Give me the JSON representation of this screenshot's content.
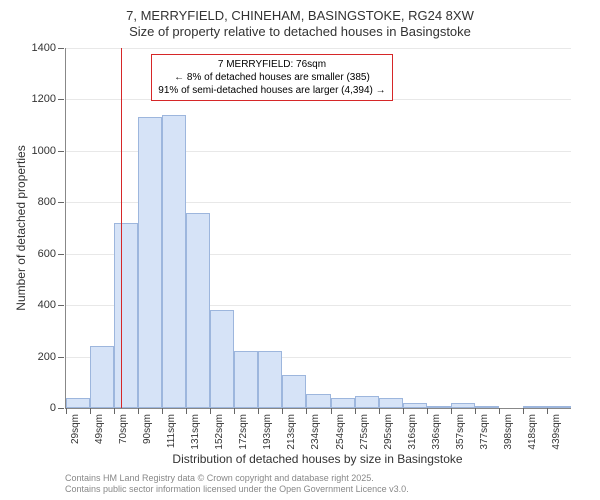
{
  "chart": {
    "type": "histogram",
    "title_main": "7, MERRYFIELD, CHINEHAM, BASINGSTOKE, RG24 8XW",
    "title_sub": "Size of property relative to detached houses in Basingstoke",
    "y_axis_title": "Number of detached properties",
    "x_axis_title": "Distribution of detached houses by size in Basingstoke",
    "ylim": [
      0,
      1400
    ],
    "ytick_step": 200,
    "y_ticks": [
      0,
      200,
      400,
      600,
      800,
      1000,
      1200,
      1400
    ],
    "x_labels": [
      "29sqm",
      "49sqm",
      "70sqm",
      "90sqm",
      "111sqm",
      "131sqm",
      "152sqm",
      "172sqm",
      "193sqm",
      "213sqm",
      "234sqm",
      "254sqm",
      "275sqm",
      "295sqm",
      "316sqm",
      "336sqm",
      "357sqm",
      "377sqm",
      "398sqm",
      "418sqm",
      "439sqm"
    ],
    "bars": [
      40,
      240,
      720,
      1130,
      1140,
      760,
      380,
      220,
      220,
      130,
      55,
      40,
      45,
      40,
      18,
      8,
      20,
      2,
      0,
      4,
      4
    ],
    "bar_fill_color": "#d6e3f7",
    "bar_border_color": "#9db6dd",
    "grid_color": "#e8e8e8",
    "background_color": "#ffffff",
    "ref_line_color": "#d62728",
    "ref_line_position": 76,
    "ref_line_bin_start": 70,
    "ref_line_bin_end": 90,
    "annotation": {
      "line1": "7 MERRYFIELD: 76sqm",
      "line2": "← 8% of detached houses are smaller (385)",
      "line3": "91% of semi-detached houses are larger (4,394) →",
      "border_color": "#d62728"
    },
    "footer_line1": "Contains HM Land Registry data © Crown copyright and database right 2025.",
    "footer_line2": "Contains public sector information licensed under the Open Government Licence v3.0.",
    "title_fontsize": 13,
    "label_fontsize": 11,
    "axis_title_fontsize": 12
  }
}
